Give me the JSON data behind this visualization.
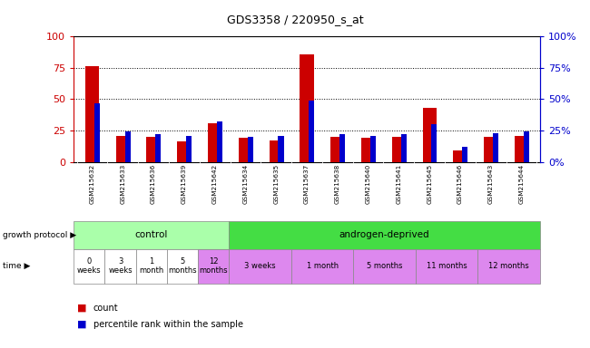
{
  "title": "GDS3358 / 220950_s_at",
  "samples": [
    "GSM215632",
    "GSM215633",
    "GSM215636",
    "GSM215639",
    "GSM215642",
    "GSM215634",
    "GSM215635",
    "GSM215637",
    "GSM215638",
    "GSM215640",
    "GSM215641",
    "GSM215645",
    "GSM215646",
    "GSM215643",
    "GSM215644"
  ],
  "count_values": [
    76,
    21,
    20,
    16,
    31,
    19,
    17,
    86,
    20,
    19,
    20,
    43,
    9,
    20,
    21
  ],
  "percentile_values": [
    47,
    24,
    22,
    21,
    32,
    20,
    21,
    49,
    22,
    21,
    22,
    30,
    12,
    23,
    24
  ],
  "count_color": "#cc0000",
  "percentile_color": "#0000cc",
  "left_axis_color": "#cc0000",
  "right_axis_color": "#0000cc",
  "ylim": [
    0,
    100
  ],
  "y_ticks": [
    0,
    25,
    50,
    75,
    100
  ],
  "bg_color": "#ffffff",
  "sample_bg_color": "#d0d0d0",
  "control_color": "#aaffaa",
  "androgen_color": "#44dd44",
  "time_white_color": "#ffffff",
  "time_pink_color": "#dd88ee",
  "groups": [
    {
      "label": "control",
      "color": "#aaffaa",
      "start": 0,
      "end": 5
    },
    {
      "label": "androgen-deprived",
      "color": "#44dd44",
      "start": 5,
      "end": 15
    }
  ],
  "time_labels": [
    {
      "label": "0\nweeks",
      "start": 0,
      "end": 1,
      "color": "#ffffff"
    },
    {
      "label": "3\nweeks",
      "start": 1,
      "end": 2,
      "color": "#ffffff"
    },
    {
      "label": "1\nmonth",
      "start": 2,
      "end": 3,
      "color": "#ffffff"
    },
    {
      "label": "5\nmonths",
      "start": 3,
      "end": 4,
      "color": "#ffffff"
    },
    {
      "label": "12\nmonths",
      "start": 4,
      "end": 5,
      "color": "#dd88ee"
    },
    {
      "label": "3 weeks",
      "start": 5,
      "end": 7,
      "color": "#dd88ee"
    },
    {
      "label": "1 month",
      "start": 7,
      "end": 9,
      "color": "#dd88ee"
    },
    {
      "label": "5 months",
      "start": 9,
      "end": 11,
      "color": "#dd88ee"
    },
    {
      "label": "11 months",
      "start": 11,
      "end": 13,
      "color": "#dd88ee"
    },
    {
      "label": "12 months",
      "start": 13,
      "end": 15,
      "color": "#dd88ee"
    }
  ],
  "red_bar_width": 0.45,
  "blue_bar_width": 0.18
}
